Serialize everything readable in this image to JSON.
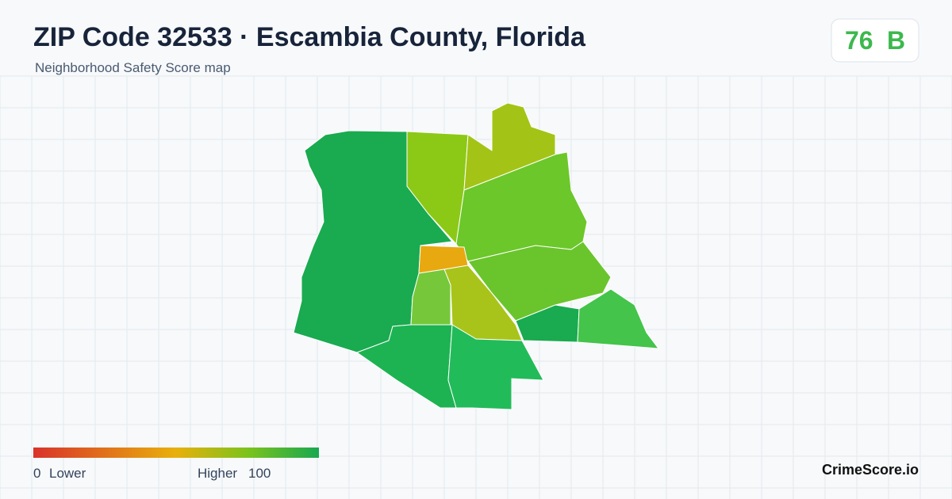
{
  "header": {
    "title": "ZIP Code 32533 · Escambia County, Florida",
    "subtitle": "Neighborhood Safety Score map"
  },
  "score": {
    "value": "76",
    "grade": "B"
  },
  "legend": {
    "min": 0,
    "min_label": "Lower",
    "max_label": "Higher",
    "max": 100
  },
  "brand": "CrimeScore.io"
}
